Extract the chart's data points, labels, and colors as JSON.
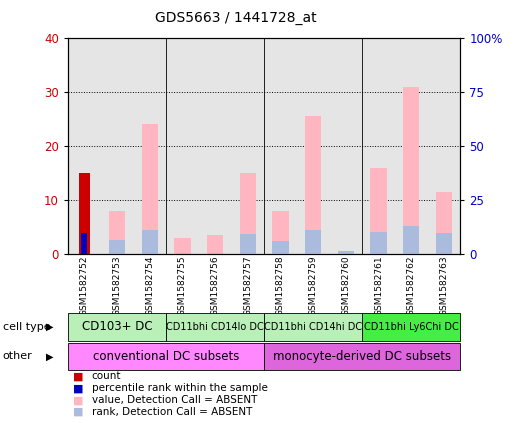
{
  "title": "GDS5663 / 1441728_at",
  "samples": [
    "GSM1582752",
    "GSM1582753",
    "GSM1582754",
    "GSM1582755",
    "GSM1582756",
    "GSM1582757",
    "GSM1582758",
    "GSM1582759",
    "GSM1582760",
    "GSM1582761",
    "GSM1582762",
    "GSM1582763"
  ],
  "count_values": [
    15,
    0,
    0,
    0,
    0,
    0,
    0,
    0,
    0,
    0,
    0,
    0
  ],
  "percentile_rank_values": [
    9.5,
    0,
    0,
    0,
    0,
    0,
    0,
    0,
    0,
    0,
    0,
    0
  ],
  "value_absent": [
    0,
    8,
    24,
    3,
    3.5,
    15,
    8,
    25.5,
    0,
    16,
    31,
    11.5
  ],
  "rank_absent": [
    0,
    6.5,
    11,
    0,
    0,
    9,
    6,
    11,
    1.5,
    10,
    13,
    9.5
  ],
  "ylim_left": [
    0,
    40
  ],
  "ylim_right": [
    0,
    100
  ],
  "yticks_left": [
    0,
    10,
    20,
    30,
    40
  ],
  "yticks_right": [
    0,
    25,
    50,
    75,
    100
  ],
  "ytick_labels_right": [
    "0",
    "25",
    "50",
    "75",
    "100%"
  ],
  "cell_type_groups": [
    {
      "label": "CD103+ DC",
      "start": 0,
      "end": 2,
      "color": "#b8f0b8"
    },
    {
      "label": "CD11bhi CD14lo DC",
      "start": 3,
      "end": 5,
      "color": "#b8f0b8"
    },
    {
      "label": "CD11bhi CD14hi DC",
      "start": 6,
      "end": 8,
      "color": "#b8f0b8"
    },
    {
      "label": "CD11bhi Ly6Chi DC",
      "start": 9,
      "end": 11,
      "color": "#44ee44"
    }
  ],
  "other_groups": [
    {
      "label": "conventional DC subsets",
      "start": 0,
      "end": 5,
      "color": "#ff88ff"
    },
    {
      "label": "monocyte-derived DC subsets",
      "start": 6,
      "end": 11,
      "color": "#dd66dd"
    }
  ],
  "count_color": "#CC0000",
  "percentile_color": "#0000BB",
  "value_absent_color": "#FFB6C1",
  "rank_absent_color": "#AABBDD",
  "axis_left_color": "#CC0000",
  "axis_right_color": "#0000CC",
  "col_bg_color": "#CCCCCC",
  "col_bg_alpha": 0.5
}
